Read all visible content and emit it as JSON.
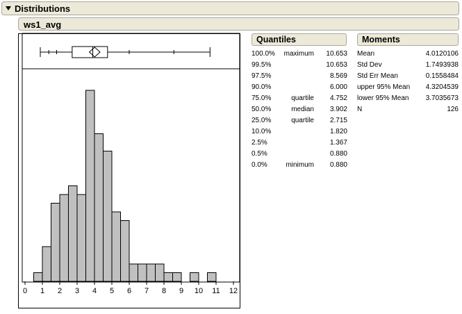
{
  "header": {
    "title": "Distributions"
  },
  "variable": {
    "name": "ws1_avg"
  },
  "quantiles": {
    "title": "Quantiles",
    "rows": [
      {
        "pct": "100.0%",
        "label": "maximum",
        "value": "10.653"
      },
      {
        "pct": "99.5%",
        "label": "",
        "value": "10.653"
      },
      {
        "pct": "97.5%",
        "label": "",
        "value": "8.569"
      },
      {
        "pct": "90.0%",
        "label": "",
        "value": "6.000"
      },
      {
        "pct": "75.0%",
        "label": "quartile",
        "value": "4.752"
      },
      {
        "pct": "50.0%",
        "label": "median",
        "value": "3.902"
      },
      {
        "pct": "25.0%",
        "label": "quartile",
        "value": "2.715"
      },
      {
        "pct": "10.0%",
        "label": "",
        "value": "1.820"
      },
      {
        "pct": "2.5%",
        "label": "",
        "value": "1.367"
      },
      {
        "pct": "0.5%",
        "label": "",
        "value": "0.880"
      },
      {
        "pct": "0.0%",
        "label": "minimum",
        "value": "0.880"
      }
    ]
  },
  "moments": {
    "title": "Moments",
    "rows": [
      {
        "label": "Mean",
        "value": "4.0120106"
      },
      {
        "label": "Std Dev",
        "value": "1.7493938"
      },
      {
        "label": "Std Err Mean",
        "value": "0.1558484"
      },
      {
        "label": "upper 95% Mean",
        "value": "4.3204539"
      },
      {
        "label": "lower 95% Mean",
        "value": "3.7035673"
      },
      {
        "label": "N",
        "value": "126"
      }
    ]
  },
  "colors": {
    "bar_fill": "#c0c0c0",
    "header_bg": "#ece9d8"
  },
  "chart_data": {
    "type": "bar",
    "xlim": [
      0,
      12
    ],
    "xticks": [
      "0",
      "1",
      "2",
      "3",
      "4",
      "5",
      "6",
      "7",
      "8",
      "9",
      "10",
      "11",
      "12"
    ],
    "bin_width": 0.5,
    "bins": [
      {
        "start": 0.5,
        "count": 1
      },
      {
        "start": 1.0,
        "count": 4
      },
      {
        "start": 1.5,
        "count": 9
      },
      {
        "start": 2.0,
        "count": 10
      },
      {
        "start": 2.5,
        "count": 11
      },
      {
        "start": 3.0,
        "count": 10
      },
      {
        "start": 3.5,
        "count": 22
      },
      {
        "start": 4.0,
        "count": 17
      },
      {
        "start": 4.5,
        "count": 15
      },
      {
        "start": 5.0,
        "count": 8
      },
      {
        "start": 5.5,
        "count": 7
      },
      {
        "start": 6.0,
        "count": 2
      },
      {
        "start": 6.5,
        "count": 2
      },
      {
        "start": 7.0,
        "count": 2
      },
      {
        "start": 7.5,
        "count": 2
      },
      {
        "start": 8.0,
        "count": 1
      },
      {
        "start": 8.5,
        "count": 1
      },
      {
        "start": 9.5,
        "count": 1
      },
      {
        "start": 10.5,
        "count": 1
      }
    ],
    "boxplot": {
      "min": 0.88,
      "p2_5": 1.367,
      "p10": 1.82,
      "q1": 2.715,
      "median": 3.902,
      "mean": 4.0120106,
      "q3": 4.752,
      "p90": 6.0,
      "p97_5": 8.569,
      "max": 10.653,
      "ci_lower": 3.7035673,
      "ci_upper": 4.3204539
    }
  }
}
